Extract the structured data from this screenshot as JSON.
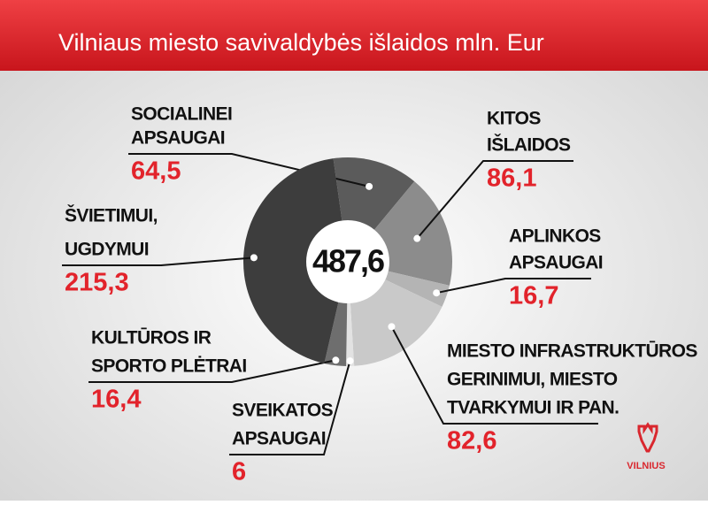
{
  "chart_data": {
    "type": "donut",
    "title": "Vilniaus miesto savivaldybės išlaidos mln. Eur",
    "categories": [
      [
        "SOCIALINEI",
        "APSAUGAI"
      ],
      [
        "KITOS",
        "IŠLAIDOS"
      ],
      [
        "APLINKOS",
        "APSAUGAI"
      ],
      [
        "MIESTO INFRASTRUKTŪROS",
        "GERINIMUI, MIESTO",
        "TVARKYMUI IR PAN."
      ],
      [
        "SVEIKATOS",
        "APSAUGAI"
      ],
      [
        "KULTŪROS IR",
        "SPORTO PLĖTRAI"
      ],
      [
        "ŠVIETIMUI,",
        "UGDYMUI"
      ]
    ],
    "values": [
      64.5,
      86.1,
      16.7,
      82.6,
      6,
      16.4,
      215.3
    ],
    "value_labels": [
      "64,5",
      "86,1",
      "16,7",
      "82,6",
      "6",
      "16,4",
      "215,3"
    ],
    "colors": [
      "#5b5b5b",
      "#8c8c8c",
      "#b4b4b4",
      "#c9c9c9",
      "#e2e2e2",
      "#6e6e6e",
      "#3d3d3d"
    ],
    "total": {
      "value": 487.6,
      "label": "487,6"
    }
  },
  "logo": "VILNIUS"
}
